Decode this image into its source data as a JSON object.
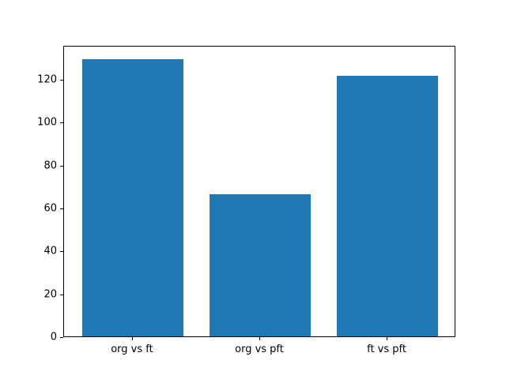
{
  "figure": {
    "background": "#ffffff"
  },
  "chart_data": {
    "type": "bar",
    "categories": [
      "org vs ft",
      "org vs pft",
      "ft vs pft"
    ],
    "values": [
      129.3,
      66.2,
      121.4
    ],
    "title": "",
    "xlabel": "",
    "ylabel": "",
    "ylim": [
      0,
      135.8
    ],
    "xlim": [
      -0.54,
      2.54
    ],
    "yticks": [
      0,
      20,
      40,
      60,
      80,
      100,
      120
    ],
    "bar_width": 0.8,
    "bar_color": "#1f77b4",
    "axis_color": "#000000",
    "grid": false,
    "legend": "none"
  }
}
